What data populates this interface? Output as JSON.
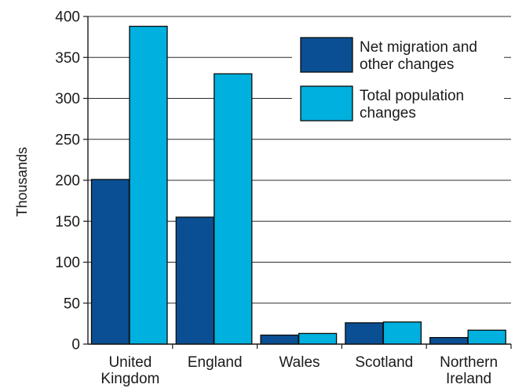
{
  "chart_data": {
    "type": "bar",
    "title": "",
    "xlabel": "",
    "ylabel": "Thousands",
    "ylim": [
      0,
      400
    ],
    "yticks": [
      0,
      50,
      100,
      150,
      200,
      250,
      300,
      350,
      400
    ],
    "grid": true,
    "legend_position": "top-right",
    "categories": [
      [
        "United",
        "Kingdom"
      ],
      [
        "England"
      ],
      [
        "Wales"
      ],
      [
        "Scotland"
      ],
      [
        "Northern",
        "Ireland"
      ]
    ],
    "series": [
      {
        "name": [
          "Net migration and",
          "other changes"
        ],
        "color": "#0a4f93",
        "values": [
          201,
          155,
          11,
          26,
          8
        ]
      },
      {
        "name": [
          "Total population",
          "changes"
        ],
        "color": "#00b0de",
        "values": [
          388,
          330,
          13,
          27,
          17
        ]
      }
    ]
  }
}
